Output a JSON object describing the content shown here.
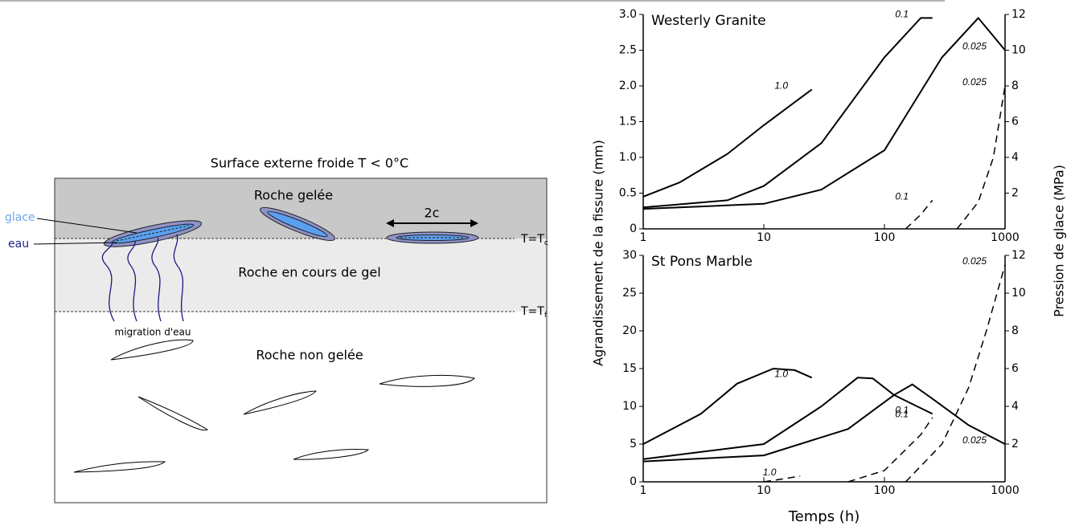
{
  "diagram": {
    "caption": "Surface externe froide T < 0°C",
    "zones": [
      "Roche gelée",
      "Roche en cours de gel",
      "Roche non gelée"
    ],
    "crack_size": "2c",
    "ice": "glace",
    "water": "eau",
    "migration": "migration d'eau",
    "front_c": {
      "label": "T=T",
      "sub": "c"
    },
    "front_f": {
      "label": "T=T",
      "sub": "f"
    }
  },
  "chart_data": [
    {
      "type": "line",
      "title": "Westerly Granite",
      "ylabel": "Agrandissement de la fissure (mm)",
      "y2label": "Pression de glace (MPa)",
      "xscale": "log",
      "xlim": [
        1,
        1000
      ],
      "xticks": [
        1,
        10,
        100,
        1000
      ],
      "ylim": [
        0,
        3
      ],
      "yticks": [
        0,
        0.5,
        {
          "value": 1,
          "label": "1.0"
        },
        1.5,
        {
          "value": 2,
          "label": "2.0"
        },
        2.5,
        {
          "value": 3,
          "label": "3.0"
        }
      ],
      "y2lim": [
        0,
        12
      ],
      "y2ticks": [
        2,
        4,
        6,
        8,
        10,
        12
      ],
      "series": [
        {
          "name": "1.0",
          "color": "#000000",
          "linestyle": "solid",
          "x": [
            1,
            2,
            5,
            10,
            25
          ],
          "values": [
            0.45,
            0.65,
            1.05,
            1.45,
            1.95
          ]
        },
        {
          "name": "0.1",
          "color": "#000000",
          "linestyle": "solid",
          "x": [
            1,
            5,
            10,
            30,
            100,
            200,
            250
          ],
          "values": [
            0.3,
            0.4,
            0.6,
            1.2,
            2.4,
            2.95,
            2.95
          ]
        },
        {
          "name": "0.025",
          "color": "#000000",
          "linestyle": "solid",
          "x": [
            1,
            10,
            30,
            100,
            300,
            600,
            1000
          ],
          "values": [
            0.28,
            0.35,
            0.55,
            1.1,
            2.4,
            2.95,
            2.5
          ]
        },
        {
          "name": "0.1",
          "color": "#000000",
          "linestyle": "dashed",
          "axis": "y2",
          "x": [
            150,
            200,
            250
          ],
          "values": [
            0,
            0.8,
            1.6
          ]
        },
        {
          "name": "0.025",
          "color": "#000000",
          "linestyle": "dashed",
          "axis": "y2",
          "x": [
            400,
            600,
            800,
            1000
          ],
          "values": [
            0,
            1.5,
            4,
            8
          ]
        }
      ]
    },
    {
      "type": "line",
      "title": "St Pons Marble",
      "xlabel": "Temps (h)",
      "xscale": "log",
      "xlim": [
        1,
        1000
      ],
      "xticks": [
        1,
        10,
        100,
        1000
      ],
      "ylim": [
        0,
        30
      ],
      "yticks": [
        0,
        5,
        10,
        15,
        20,
        25,
        30
      ],
      "y2lim": [
        0,
        12
      ],
      "y2ticks": [
        2,
        4,
        6,
        8,
        10,
        12
      ],
      "series": [
        {
          "name": "1.0",
          "color": "#000000",
          "linestyle": "solid",
          "x": [
            1,
            3,
            6,
            12,
            18,
            25
          ],
          "values": [
            5,
            9,
            13,
            15,
            14.8,
            13.8
          ]
        },
        {
          "name": "0.1",
          "color": "#000000",
          "linestyle": "solid",
          "x": [
            1,
            10,
            30,
            60,
            80,
            120,
            250
          ],
          "values": [
            3,
            5,
            10,
            13.8,
            13.7,
            11.5,
            9
          ]
        },
        {
          "name": "0.025",
          "color": "#000000",
          "linestyle": "solid",
          "x": [
            1,
            10,
            50,
            120,
            170,
            250,
            500,
            1000
          ],
          "values": [
            2.7,
            3.5,
            7,
            11.5,
            12.9,
            11,
            7.5,
            5
          ]
        },
        {
          "name": "1.0",
          "color": "#000000",
          "linestyle": "dashed",
          "axis": "y2",
          "x": [
            10,
            20
          ],
          "values": [
            0,
            0.3
          ]
        },
        {
          "name": "0.1",
          "color": "#000000",
          "linestyle": "dashed",
          "axis": "y2",
          "x": [
            50,
            100,
            200,
            250
          ],
          "values": [
            0,
            0.6,
            2.5,
            3.4
          ]
        },
        {
          "name": "0.025",
          "color": "#000000",
          "linestyle": "dashed",
          "axis": "y2",
          "x": [
            150,
            300,
            500,
            700,
            1000
          ],
          "values": [
            0,
            2,
            5,
            8,
            11.5
          ]
        }
      ]
    }
  ]
}
